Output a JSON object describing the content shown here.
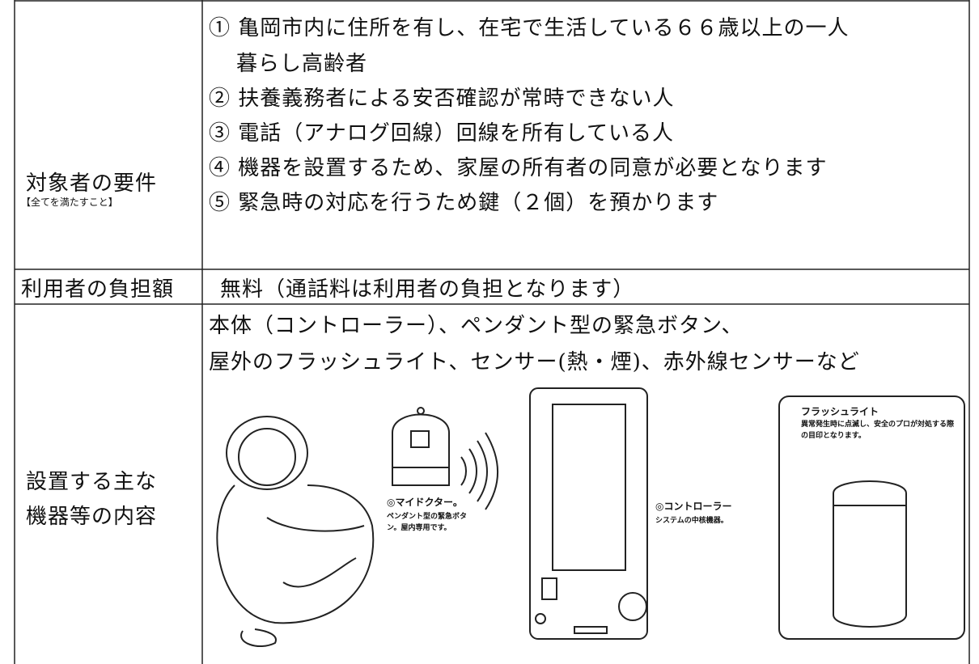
{
  "table": {
    "rows": [
      {
        "label": "対象者の要件",
        "note": "【全てを満たすこと】",
        "items": [
          [
            "① 亀岡市内に住所を有し、在宅で生活している６６歳以上の一人",
            "暮らし高齢者"
          ],
          [
            "② 扶養義務者による安否確認が常時できない人"
          ],
          [
            "③ 電話（アナログ回線）回線を所有している人"
          ],
          [
            "④ 機器を設置するため、家屋の所有者の同意が必要となります"
          ],
          [
            "⑤ 緊急時の対応を行うため鍵（２個）を預かります"
          ]
        ]
      },
      {
        "label": "利用者の負担額",
        "text": "無料（通話料は利用者の負担となります）"
      },
      {
        "label_lines": [
          "設置する主な",
          "機器等の内容"
        ],
        "text_lines": [
          "本体（コントローラー）、ペンダント型の緊急ボタン、",
          "屋外のフラッシュライト、センサー(熱・煙)、赤外線センサーなど"
        ],
        "figure": {
          "pendant_title": "◎マイドクター。",
          "pendant_desc": "ペンダント型の緊急ボタン。屋内専用です。",
          "controller_title": "◎コントローラー",
          "controller_desc": "システムの中核機器。",
          "light_title": "フラッシュライト",
          "light_desc": "異常発生時に点滅し、安全のプロが対処する際の目印となります。"
        }
      }
    ]
  }
}
